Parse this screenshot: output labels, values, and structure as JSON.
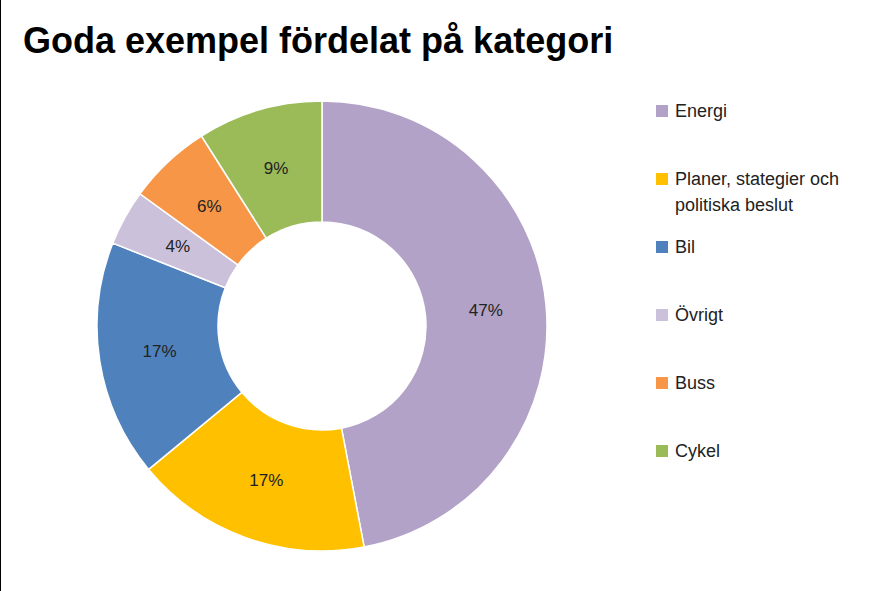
{
  "chart_data": {
    "type": "pie",
    "title": "Goda exempel fördelat på kategori",
    "categories": [
      "Energi",
      "Planer, stategier och politiska beslut",
      "Bil",
      "Övrigt",
      "Buss",
      "Cykel"
    ],
    "values": [
      47,
      17,
      17,
      4,
      6,
      9
    ],
    "value_labels": [
      "47%",
      "17%",
      "17%",
      "4%",
      "6%",
      "9%"
    ],
    "colors": [
      "#b3a2c7",
      "#ffc000",
      "#4f81bd",
      "#ccc1da",
      "#f79646",
      "#9bbb59"
    ],
    "data_labels": true,
    "legend": "right"
  }
}
